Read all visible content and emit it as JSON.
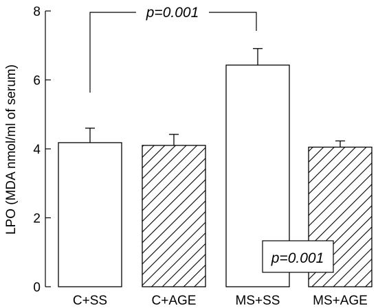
{
  "chart_data": {
    "type": "bar",
    "title": "",
    "xlabel": "",
    "ylabel": "LPO (MDA nmol/ml of serum)",
    "ylim": [
      0,
      8
    ],
    "yticks": [
      0,
      2,
      4,
      6,
      8
    ],
    "categories": [
      "C+SS",
      "C+AGE",
      "MS+SS",
      "MS+AGE"
    ],
    "values": [
      4.18,
      4.1,
      6.43,
      4.05
    ],
    "errors": [
      0.42,
      0.32,
      0.48,
      0.18
    ],
    "fills": [
      "open",
      "hatched",
      "open",
      "hatched"
    ],
    "annotations": [
      {
        "text": "p=0.001",
        "type": "bracket",
        "between": [
          "C+SS",
          "MS+SS"
        ]
      },
      {
        "text": "p=0.001",
        "type": "boxed",
        "near": "MS+AGE"
      }
    ],
    "grid": false,
    "legend": "none"
  }
}
